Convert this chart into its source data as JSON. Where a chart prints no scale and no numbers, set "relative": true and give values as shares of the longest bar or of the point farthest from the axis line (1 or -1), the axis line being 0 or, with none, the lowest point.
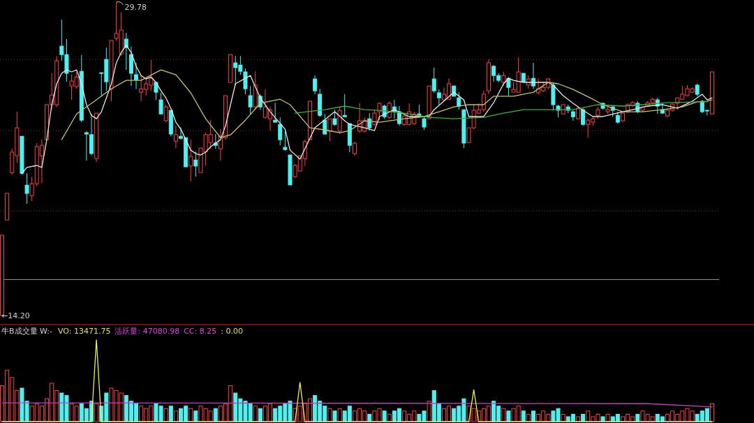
{
  "chart_data": [
    {
      "type": "candlestick",
      "categories": [
        null,
        null,
        null,
        null,
        null,
        null,
        null,
        null,
        null,
        null,
        null,
        null,
        null,
        null,
        null,
        null,
        null,
        null,
        null,
        null,
        null,
        null,
        null,
        null,
        null,
        null,
        null,
        null,
        null,
        null,
        null,
        null,
        null,
        null,
        null,
        null,
        null,
        null,
        null,
        null,
        null,
        null,
        null,
        null,
        null,
        null,
        null,
        null,
        null,
        null,
        null,
        null,
        null,
        null,
        null,
        null,
        null,
        null,
        null,
        null,
        null,
        null,
        null,
        null,
        null,
        null,
        null,
        null,
        null,
        null,
        null,
        null,
        null,
        null,
        null,
        null,
        null,
        null,
        null,
        null,
        null,
        null,
        null,
        null,
        null,
        null,
        null,
        null,
        null,
        null,
        null,
        null,
        null,
        null,
        null,
        null,
        null,
        null,
        null,
        null,
        null,
        null,
        null,
        null,
        null,
        null,
        null,
        null,
        null,
        null,
        null,
        null,
        null,
        null,
        null,
        null,
        null,
        null,
        null,
        null,
        null,
        null,
        null,
        null,
        null,
        null,
        null,
        null,
        null,
        null,
        null,
        null,
        null,
        null,
        null,
        null,
        null,
        null,
        null,
        null,
        null,
        null,
        null,
        null
      ],
      "ohlc": [
        [
          14.2,
          18.19,
          14.2,
          18.19
        ],
        [
          18.95,
          20.27,
          18.95,
          20.27
        ],
        [
          21.31,
          22.49,
          21.2,
          22.32
        ],
        [
          22.14,
          24.33,
          21.79,
          23.53
        ],
        [
          23.11,
          23.11,
          21.2,
          21.27
        ],
        [
          20.68,
          21.27,
          19.75,
          20.27
        ],
        [
          20.16,
          21.1,
          19.89,
          20.75
        ],
        [
          20.75,
          22.77,
          20.62,
          22.59
        ],
        [
          22.14,
          22.97,
          20.79,
          22.66
        ],
        [
          22.94,
          24.68,
          22.94,
          24.68
        ],
        [
          24.68,
          26.24,
          24.43,
          25.16
        ],
        [
          24.68,
          27.1,
          24.57,
          26.86
        ],
        [
          27.59,
          28.91,
          26.86,
          27.17
        ],
        [
          27.17,
          27.94,
          25.82,
          26.24
        ],
        [
          25.61,
          26.17,
          24.92,
          25.86
        ],
        [
          25.58,
          26.31,
          25.47,
          26.06
        ],
        [
          26.34,
          27.14,
          23.81,
          23.91
        ],
        [
          23.29,
          23.36,
          21.9,
          23.22
        ],
        [
          23.19,
          24.22,
          22.18,
          22.25
        ],
        [
          22.0,
          24.26,
          21.83,
          24.26
        ],
        [
          26.27,
          26.27,
          25.13,
          26.24
        ],
        [
          26.93,
          27.52,
          25.37,
          25.82
        ],
        [
          25.47,
          27.87,
          24.85,
          27.87
        ],
        [
          27.98,
          29.78,
          27.87,
          28.22
        ],
        [
          27.21,
          29.26,
          27.1,
          28.39
        ],
        [
          27.94,
          28.25,
          26.41,
          27.52
        ],
        [
          27.17,
          27.56,
          25.61,
          26.24
        ],
        [
          26.17,
          26.76,
          25.44,
          25.92
        ],
        [
          25.3,
          26.13,
          24.85,
          25.47
        ],
        [
          25.44,
          25.96,
          25.13,
          25.72
        ],
        [
          25.65,
          26.9,
          25.37,
          25.99
        ],
        [
          25.79,
          25.82,
          24.92,
          25.3
        ],
        [
          24.92,
          25.27,
          24.22,
          24.22
        ],
        [
          23.88,
          24.68,
          23.81,
          24.57
        ],
        [
          24.4,
          24.4,
          23.11,
          23.22
        ],
        [
          22.87,
          23.63,
          22.52,
          23.19
        ],
        [
          23.11,
          23.56,
          22.94,
          23.01
        ],
        [
          23.04,
          23.04,
          21.59,
          21.59
        ],
        [
          21.63,
          22.94,
          20.86,
          22.11
        ],
        [
          21.93,
          22.35,
          21.1,
          21.63
        ],
        [
          21.31,
          22.52,
          21.31,
          22.52
        ],
        [
          22.35,
          23.29,
          21.66,
          23.19
        ],
        [
          22.8,
          23.91,
          22.49,
          23.19
        ],
        [
          22.77,
          23.22,
          22.49,
          22.66
        ],
        [
          22.49,
          23.46,
          21.9,
          23.11
        ],
        [
          23.04,
          25.13,
          22.94,
          25.13
        ],
        [
          25.79,
          27.17,
          25.79,
          27.17
        ],
        [
          26.76,
          27.1,
          25.65,
          26.52
        ],
        [
          26.65,
          27.1,
          26.17,
          26.34
        ],
        [
          26.31,
          26.48,
          25.2,
          25.47
        ],
        [
          25.13,
          25.61,
          24.22,
          24.57
        ],
        [
          24.57,
          26.34,
          24.43,
          25.65
        ],
        [
          25.1,
          25.2,
          24.43,
          24.57
        ],
        [
          24.05,
          25.44,
          23.98,
          24.57
        ],
        [
          23.98,
          24.57,
          23.39,
          24.43
        ],
        [
          23.91,
          24.78,
          23.81,
          23.81
        ],
        [
          23.7,
          24.05,
          22.66,
          22.94
        ],
        [
          22.56,
          23.36,
          22.39,
          22.45
        ],
        [
          22.18,
          22.18,
          20.69,
          20.69
        ],
        [
          21.1,
          21.73,
          21.03,
          21.66
        ],
        [
          21.38,
          22.14,
          21.38,
          22.14
        ],
        [
          22.0,
          22.94,
          21.63,
          22.84
        ],
        [
          22.94,
          24.85,
          22.94,
          24.85
        ],
        [
          25.96,
          26.13,
          25.2,
          25.37
        ],
        [
          25.2,
          25.47,
          24.08,
          24.15
        ],
        [
          23.91,
          24.22,
          23.19,
          23.22
        ],
        [
          23.36,
          23.98,
          22.87,
          23.98
        ],
        [
          23.98,
          24.43,
          23.63,
          23.7
        ],
        [
          23.36,
          24.57,
          23.22,
          24.4
        ],
        [
          24.15,
          25.2,
          24.08,
          24.08
        ],
        [
          23.74,
          23.74,
          22.32,
          22.66
        ],
        [
          22.25,
          22.84,
          22.14,
          22.77
        ],
        [
          23.36,
          24.75,
          23.29,
          23.88
        ],
        [
          23.36,
          24.05,
          23.29,
          23.91
        ],
        [
          23.98,
          24.26,
          23.39,
          23.53
        ],
        [
          23.7,
          24.43,
          23.63,
          24.26
        ],
        [
          24.33,
          24.78,
          23.91,
          24.75
        ],
        [
          24.61,
          24.68,
          23.98,
          24.08
        ],
        [
          24.05,
          24.85,
          23.98,
          24.75
        ],
        [
          24.57,
          24.92,
          23.98,
          24.33
        ],
        [
          24.33,
          24.61,
          23.63,
          23.74
        ],
        [
          23.7,
          24.19,
          23.63,
          24.12
        ],
        [
          23.7,
          24.75,
          23.63,
          24.33
        ],
        [
          23.74,
          24.33,
          23.67,
          24.22
        ],
        [
          24.22,
          24.68,
          24.05,
          24.08
        ],
        [
          23.98,
          24.08,
          23.43,
          23.57
        ],
        [
          23.98,
          25.61,
          23.98,
          25.61
        ],
        [
          25.96,
          26.52,
          25.27,
          25.37
        ],
        [
          25.27,
          25.44,
          24.68,
          25.02
        ],
        [
          24.92,
          25.54,
          24.85,
          25.2
        ],
        [
          24.95,
          25.99,
          24.92,
          25.72
        ],
        [
          25.61,
          25.61,
          25.1,
          25.1
        ],
        [
          25.02,
          25.3,
          24.43,
          24.61
        ],
        [
          24.43,
          24.43,
          22.52,
          22.77
        ],
        [
          22.8,
          23.53,
          22.8,
          23.53
        ],
        [
          23.53,
          24.68,
          23.46,
          24.4
        ],
        [
          24.26,
          24.75,
          24.22,
          24.43
        ],
        [
          24.43,
          25.37,
          24.33,
          25.2
        ],
        [
          25.37,
          26.93,
          25.2,
          26.76
        ],
        [
          26.59,
          26.65,
          25.82,
          26.13
        ],
        [
          26.13,
          26.24,
          25.79,
          25.89
        ],
        [
          25.79,
          26.31,
          25.61,
          26.13
        ],
        [
          25.99,
          26.06,
          25.13,
          25.54
        ],
        [
          25.3,
          25.82,
          25.3,
          25.44
        ],
        [
          25.3,
          27.04,
          25.3,
          26.31
        ],
        [
          26.24,
          26.24,
          25.82,
          25.82
        ],
        [
          25.65,
          26.13,
          25.47,
          25.96
        ],
        [
          25.99,
          26.76,
          25.47,
          25.61
        ],
        [
          25.27,
          25.99,
          25.2,
          25.47
        ],
        [
          25.37,
          25.82,
          25.3,
          25.54
        ],
        [
          25.54,
          25.99,
          25.44,
          25.96
        ],
        [
          25.65,
          25.79,
          24.4,
          24.68
        ],
        [
          24.61,
          24.68,
          24.05,
          24.4
        ],
        [
          24.22,
          24.68,
          24.22,
          24.68
        ],
        [
          24.57,
          24.68,
          24.26,
          24.4
        ],
        [
          24.33,
          24.4,
          23.88,
          24.08
        ],
        [
          23.98,
          24.61,
          23.98,
          24.5
        ],
        [
          24.43,
          24.5,
          23.63,
          23.7
        ],
        [
          23.7,
          23.98,
          23.04,
          23.91
        ],
        [
          23.81,
          24.08,
          23.63,
          23.98
        ],
        [
          24.15,
          24.57,
          23.98,
          24.43
        ],
        [
          24.75,
          24.78,
          24.43,
          24.5
        ],
        [
          24.33,
          24.57,
          24.22,
          24.43
        ],
        [
          24.57,
          24.61,
          24.08,
          24.4
        ],
        [
          24.15,
          24.33,
          23.74,
          23.81
        ],
        [
          23.88,
          24.33,
          23.81,
          24.26
        ],
        [
          24.33,
          24.75,
          24.26,
          24.68
        ],
        [
          24.64,
          24.85,
          24.57,
          24.78
        ],
        [
          24.75,
          24.85,
          24.26,
          24.33
        ],
        [
          24.4,
          24.61,
          24.33,
          24.57
        ],
        [
          24.61,
          24.85,
          24.57,
          24.78
        ],
        [
          24.78,
          25.02,
          24.75,
          24.95
        ],
        [
          24.92,
          25.02,
          24.22,
          24.61
        ],
        [
          24.43,
          24.75,
          24.22,
          24.26
        ],
        [
          24.12,
          24.47,
          24.05,
          24.4
        ],
        [
          24.4,
          24.75,
          24.33,
          24.71
        ],
        [
          24.75,
          25.02,
          24.43,
          25.02
        ],
        [
          24.95,
          25.61,
          24.92,
          25.2
        ],
        [
          25.13,
          25.65,
          25.1,
          25.47
        ],
        [
          25.3,
          25.54,
          25.27,
          25.47
        ],
        [
          25.65,
          25.72,
          25.1,
          25.2
        ],
        [
          24.85,
          24.92,
          24.26,
          24.33
        ],
        [
          24.4,
          24.43,
          24.15,
          24.37
        ],
        [
          24.22,
          26.31,
          24.22,
          26.31
        ]
      ],
      "colors": [
        "#ff4040",
        "#ff4040",
        "#ff4040",
        "#ff4040",
        "#50f0f0",
        "#50f0f0",
        "#ff4040",
        "#ff4040",
        "#ff4040",
        "#ff4040",
        "#ff4040",
        "#ff4040",
        "#50f0f0",
        "#50f0f0",
        "#ff4040",
        "#ff4040",
        "#50f0f0",
        "#50f0f0",
        "#50f0f0",
        "#ff4040",
        "#50f0f0",
        "#50f0f0",
        "#ff4040",
        "#ff4040",
        "#ff4040",
        "#50f0f0",
        "#50f0f0",
        "#50f0f0",
        "#ff4040",
        "#ff4040",
        "#ff4040",
        "#50f0f0",
        "#50f0f0",
        "#ff4040",
        "#50f0f0",
        "#ff4040",
        "#50f0f0",
        "#50f0f0",
        "#ff4040",
        "#50f0f0",
        "#ff4040",
        "#ff4040",
        "#ff4040",
        "#50f0f0",
        "#ff4040",
        "#ff4040",
        "#ff4040",
        "#50f0f0",
        "#50f0f0",
        "#50f0f0",
        "#50f0f0",
        "#ff4040",
        "#50f0f0",
        "#ff4040",
        "#ff4040",
        "#50f0f0",
        "#50f0f0",
        "#50f0f0",
        "#50f0f0",
        "#ff4040",
        "#ff4040",
        "#ff4040",
        "#ff4040",
        "#50f0f0",
        "#50f0f0",
        "#50f0f0",
        "#ff4040",
        "#50f0f0",
        "#ff4040",
        "#50f0f0",
        "#50f0f0",
        "#ff4040",
        "#ff4040",
        "#ff4040",
        "#50f0f0",
        "#ff4040",
        "#ff4040",
        "#50f0f0",
        "#ff4040",
        "#50f0f0",
        "#50f0f0",
        "#ff4040",
        "#ff4040",
        "#ff4040",
        "#50f0f0",
        "#50f0f0",
        "#ff4040",
        "#50f0f0",
        "#50f0f0",
        "#ff4040",
        "#ff4040",
        "#50f0f0",
        "#50f0f0",
        "#50f0f0",
        "#ff4040",
        "#ff4040",
        "#ff4040",
        "#ff4040",
        "#ff4040",
        "#50f0f0",
        "#50f0f0",
        "#ff4040",
        "#50f0f0",
        "#ff4040",
        "#ff4040",
        "#50f0f0",
        "#ff4040",
        "#50f0f0",
        "#ff4040",
        "#ff4040",
        "#ff4040",
        "#50f0f0",
        "#50f0f0",
        "#ff4040",
        "#50f0f0",
        "#50f0f0",
        "#ff4040",
        "#50f0f0",
        "#ff4040",
        "#ff4040",
        "#ff4040",
        "#50f0f0",
        "#ff4040",
        "#50f0f0",
        "#50f0f0",
        "#ff4040",
        "#ff4040",
        "#ff4040",
        "#50f0f0",
        "#ff4040",
        "#ff4040",
        "#ff4040",
        "#50f0f0",
        "#50f0f0",
        "#ff4040",
        "#ff4040",
        "#ff4040",
        "#ff4040",
        "#ff4040",
        "#ff4040",
        "#50f0f0",
        "#50f0f0",
        "#50f0f0",
        "#ff4040"
      ],
      "series": [
        {
          "type": "line",
          "color": "#e8e8e8",
          "values": [
            null,
            null,
            null,
            null,
            21.27,
            21.56,
            null,
            21.66,
            21.56,
            22.94,
            24.68,
            25.72,
            26.24,
            26.41,
            26.31,
            26.41,
            25.72,
            24.68,
            24.15,
            23.98,
            24.33,
            25.02,
            25.72,
            26.76,
            27.28,
            27.63,
            27.28,
            26.59,
            26.13,
            25.96,
            26.06,
            25.79,
            25.37,
            25.02,
            24.5,
            23.81,
            23.46,
            22.94,
            22.42,
            22.25,
            22.18,
            22.32,
            22.59,
            22.77,
            22.94,
            23.63,
            24.68,
            25.72,
            null,
            null,
            26.13,
            null,
            25.02,
            null,
            24.33,
            null,
            null,
            23.46,
            22.42,
            null,
            21.97,
            null,
            null,
            23.53,
            null,
            null,
            null,
            24.33,
            null,
            23.88,
            23.7,
            null,
            null,
            23.53,
            null,
            23.39,
            24.09,
            null,
            null,
            24.43,
            null,
            null,
            24.09,
            null,
            null,
            null,
            24.09,
            24.43,
            null,
            null,
            null,
            25.3,
            null,
            24.92,
            24.09,
            null,
            null,
            24.09,
            null,
            24.78,
            null,
            25.72,
            25.99,
            25.89,
            null,
            25.79,
            null,
            null,
            null,
            null,
            25.79,
            25.65,
            null,
            25.13,
            null,
            24.75,
            null,
            24.4,
            null,
            24.09,
            null,
            24.09,
            null,
            null,
            null,
            24.33,
            null,
            24.43,
            null,
            null,
            24.61,
            null,
            null,
            24.68,
            null,
            null,
            24.5,
            null,
            null,
            24.85,
            null,
            25.2,
            24.92,
            25.02
          ]
        },
        {
          "type": "line",
          "color": "#c8c46a",
          "values": [
            null,
            null,
            null,
            null,
            null,
            null,
            null,
            null,
            null,
            null,
            null,
            null,
            22.94,
            null,
            null,
            24.22,
            null,
            null,
            null,
            24.92,
            null,
            null,
            25.47,
            null,
            null,
            25.89,
            null,
            null,
            25.89,
            null,
            null,
            null,
            26.41,
            null,
            null,
            26.17,
            null,
            null,
            25.27,
            null,
            null,
            23.98,
            null,
            null,
            23.04,
            null,
            23.18,
            null,
            null,
            23.91,
            null,
            null,
            24.75,
            null,
            null,
            null,
            24.95,
            null,
            24.68,
            null,
            null,
            null,
            23.53,
            null,
            null,
            23.43,
            null,
            null,
            23.29,
            null,
            23.39,
            null,
            null,
            23.88,
            null,
            null,
            23.81,
            null,
            null,
            null,
            null,
            23.98,
            null,
            null,
            null,
            24.09,
            null,
            null,
            24.33,
            null,
            null,
            24.57,
            null,
            null,
            24.68,
            null,
            null,
            24.68,
            null,
            25.1,
            null,
            null,
            null,
            25.1,
            null,
            null,
            null,
            25.3,
            null,
            null,
            25.79,
            null,
            25.72,
            null,
            null,
            25.44,
            null,
            null,
            null,
            24.95,
            null,
            24.68,
            null,
            null,
            null,
            24.33,
            null,
            null,
            null,
            24.33,
            null,
            null,
            null,
            24.43,
            null,
            null,
            null,
            24.57,
            null,
            null,
            24.82,
            null,
            24.85,
            24.92
          ]
        },
        {
          "type": "line",
          "color": "#3cb43c",
          "values": [
            null,
            null,
            null,
            null,
            null,
            null,
            null,
            null,
            null,
            null,
            null,
            null,
            null,
            null,
            null,
            null,
            null,
            null,
            null,
            null,
            null,
            null,
            null,
            null,
            null,
            null,
            null,
            null,
            null,
            null,
            null,
            null,
            null,
            null,
            null,
            null,
            null,
            null,
            null,
            null,
            null,
            null,
            null,
            null,
            null,
            null,
            null,
            null,
            null,
            null,
            null,
            null,
            null,
            null,
            null,
            null,
            null,
            null,
            null,
            24.26,
            null,
            null,
            null,
            null,
            null,
            24.43,
            null,
            null,
            null,
            24.61,
            null,
            null,
            null,
            24.43,
            null,
            null,
            24.4,
            null,
            null,
            null,
            null,
            24.26,
            null,
            null,
            null,
            null,
            24.05,
            null,
            null,
            null,
            null,
            23.98,
            null,
            null,
            null,
            null,
            null,
            24.05,
            null,
            null,
            null,
            24.26,
            null,
            null,
            null,
            24.43,
            null,
            null,
            null,
            null,
            24.43,
            null,
            null,
            null,
            null,
            24.43,
            null,
            null,
            null,
            null,
            24.68,
            null,
            null,
            null,
            null,
            24.61,
            null,
            null,
            null,
            24.68,
            null,
            null,
            null,
            null,
            24.78,
            null,
            null,
            null,
            null,
            null,
            24.82,
            null,
            24.82,
            null
          ]
        }
      ],
      "yticks": [
        {
          "value": 26.93,
          "label": null
        },
        {
          "value": 23.39,
          "label": null
        },
        {
          "value": 19.4,
          "label": null
        }
      ],
      "grid": "y",
      "ref_lines": [
        {
          "axis": "y",
          "value": 15.99,
          "color": "#9a9a9a"
        }
      ],
      "annotations": [
        "29.78",
        "←14.20"
      ]
    },
    {
      "type": "bar",
      "relative": true,
      "title": "牛B成交量 W:-",
      "categories": [
        null,
        null,
        null,
        null,
        null,
        null,
        null,
        null,
        null,
        null,
        null,
        null,
        null,
        null,
        null,
        null,
        null,
        null,
        null,
        null,
        null,
        null,
        null,
        null,
        null,
        null,
        null,
        null,
        null,
        null,
        null,
        null,
        null,
        null,
        null,
        null,
        null,
        null,
        null,
        null,
        null,
        null,
        null,
        null,
        null,
        null,
        null,
        null,
        null,
        null,
        null,
        null,
        null,
        null,
        null,
        null,
        null,
        null,
        null,
        null,
        null,
        null,
        null,
        null,
        null,
        null,
        null,
        null,
        null,
        null,
        null,
        null,
        null,
        null,
        null,
        null,
        null,
        null,
        null,
        null,
        null,
        null,
        null,
        null,
        null,
        null,
        null,
        null,
        null,
        null,
        null,
        null,
        null,
        null,
        null,
        null,
        null,
        null,
        null,
        null,
        null,
        null,
        null,
        null,
        null,
        null,
        null,
        null,
        null,
        null,
        null,
        null,
        null,
        null,
        null,
        null,
        null,
        null,
        null,
        null,
        null,
        null,
        null,
        null,
        null,
        null,
        null,
        null,
        null,
        null,
        null,
        null,
        null,
        null,
        null,
        null,
        null,
        null,
        null,
        null,
        null,
        null,
        null,
        null
      ],
      "values": [
        0.44,
        0.63,
        0.54,
        0.38,
        0.41,
        0.25,
        0.19,
        0.22,
        0.19,
        0.28,
        0.47,
        0.38,
        0.35,
        0.32,
        0.22,
        0.19,
        0.22,
        0.16,
        0.25,
        0.22,
        0.19,
        0.35,
        0.41,
        0.38,
        0.35,
        0.32,
        0.25,
        0.22,
        0.19,
        0.16,
        0.19,
        0.22,
        0.19,
        0.16,
        0.19,
        0.13,
        0.16,
        0.19,
        0.16,
        0.13,
        0.19,
        0.16,
        0.13,
        0.16,
        0.19,
        0.22,
        0.44,
        0.35,
        0.28,
        0.25,
        0.22,
        0.19,
        0.16,
        0.19,
        0.22,
        0.16,
        0.19,
        0.22,
        0.25,
        0.16,
        0.19,
        0.22,
        0.28,
        0.32,
        0.25,
        0.19,
        0.16,
        0.13,
        0.16,
        0.13,
        0.19,
        0.13,
        0.16,
        0.13,
        0.09,
        0.13,
        0.16,
        0.13,
        0.09,
        0.13,
        0.16,
        0.13,
        0.09,
        0.13,
        0.09,
        0.13,
        0.25,
        0.38,
        0.22,
        0.16,
        0.19,
        0.16,
        0.19,
        0.28,
        0.19,
        0.16,
        0.13,
        0.16,
        0.19,
        0.25,
        0.19,
        0.16,
        0.13,
        0.16,
        0.19,
        0.13,
        0.09,
        0.13,
        0.09,
        0.13,
        0.09,
        0.13,
        0.16,
        0.09,
        0.06,
        0.09,
        0.06,
        0.09,
        0.13,
        0.06,
        0.09,
        0.06,
        0.09,
        0.06,
        0.09,
        0.06,
        0.09,
        0.06,
        0.09,
        0.13,
        0.09,
        0.06,
        0.09,
        0.06,
        0.09,
        0.13,
        0.09,
        0.13,
        0.16,
        0.13,
        0.09,
        0.13,
        0.16,
        0.22
      ],
      "colors": [
        "#ff4040",
        "#ff4040",
        "#ff4040",
        "#ff4040",
        "#50f0f0",
        "#50f0f0",
        "#ff4040",
        "#ff4040",
        "#ff4040",
        "#ff4040",
        "#ff4040",
        "#ff4040",
        "#50f0f0",
        "#50f0f0",
        "#ff4040",
        "#ff4040",
        "#50f0f0",
        "#50f0f0",
        "#50f0f0",
        "#ff4040",
        "#50f0f0",
        "#50f0f0",
        "#ff4040",
        "#ff4040",
        "#ff4040",
        "#50f0f0",
        "#50f0f0",
        "#50f0f0",
        "#ff4040",
        "#ff4040",
        "#ff4040",
        "#50f0f0",
        "#50f0f0",
        "#ff4040",
        "#50f0f0",
        "#ff4040",
        "#50f0f0",
        "#50f0f0",
        "#ff4040",
        "#50f0f0",
        "#ff4040",
        "#ff4040",
        "#ff4040",
        "#50f0f0",
        "#ff4040",
        "#ff4040",
        "#ff4040",
        "#50f0f0",
        "#50f0f0",
        "#50f0f0",
        "#50f0f0",
        "#ff4040",
        "#50f0f0",
        "#ff4040",
        "#ff4040",
        "#50f0f0",
        "#50f0f0",
        "#50f0f0",
        "#50f0f0",
        "#ff4040",
        "#ff4040",
        "#ff4040",
        "#ff4040",
        "#50f0f0",
        "#50f0f0",
        "#50f0f0",
        "#ff4040",
        "#50f0f0",
        "#ff4040",
        "#50f0f0",
        "#50f0f0",
        "#ff4040",
        "#ff4040",
        "#ff4040",
        "#50f0f0",
        "#ff4040",
        "#ff4040",
        "#50f0f0",
        "#ff4040",
        "#50f0f0",
        "#50f0f0",
        "#ff4040",
        "#ff4040",
        "#ff4040",
        "#50f0f0",
        "#50f0f0",
        "#ff4040",
        "#50f0f0",
        "#50f0f0",
        "#ff4040",
        "#ff4040",
        "#50f0f0",
        "#50f0f0",
        "#50f0f0",
        "#ff4040",
        "#ff4040",
        "#ff4040",
        "#ff4040",
        "#ff4040",
        "#50f0f0",
        "#50f0f0",
        "#ff4040",
        "#50f0f0",
        "#ff4040",
        "#ff4040",
        "#50f0f0",
        "#ff4040",
        "#50f0f0",
        "#ff4040",
        "#ff4040",
        "#ff4040",
        "#50f0f0",
        "#50f0f0",
        "#ff4040",
        "#50f0f0",
        "#50f0f0",
        "#ff4040",
        "#50f0f0",
        "#ff4040",
        "#ff4040",
        "#ff4040",
        "#50f0f0",
        "#ff4040",
        "#50f0f0",
        "#50f0f0",
        "#ff4040",
        "#ff4040",
        "#ff4040",
        "#50f0f0",
        "#ff4040",
        "#ff4040",
        "#ff4040",
        "#50f0f0",
        "#50f0f0",
        "#ff4040",
        "#ff4040",
        "#ff4040",
        "#ff4040",
        "#ff4040",
        "#ff4040",
        "#50f0f0",
        "#50f0f0",
        "#50f0f0",
        "#ff4040"
      ],
      "series": [
        {
          "type": "line",
          "color": "#c040c0",
          "values": [
            0.23,
            null,
            null,
            null,
            null,
            null,
            null,
            null,
            null,
            null,
            null,
            null,
            null,
            null,
            null,
            null,
            null,
            null,
            null,
            null,
            null,
            null,
            null,
            null,
            null,
            null,
            null,
            null,
            null,
            null,
            null,
            null,
            null,
            null,
            null,
            null,
            null,
            null,
            null,
            null,
            null,
            null,
            null,
            null,
            null,
            null,
            null,
            null,
            null,
            null,
            null,
            null,
            null,
            null,
            null,
            null,
            null,
            null,
            null,
            null,
            null,
            null,
            null,
            null,
            null,
            null,
            null,
            null,
            null,
            null,
            null,
            null,
            null,
            null,
            null,
            null,
            null,
            null,
            null,
            null,
            null,
            null,
            null,
            null,
            null,
            null,
            null,
            null,
            null,
            null,
            null,
            null,
            null,
            null,
            null,
            null,
            null,
            null,
            null,
            null,
            null,
            null,
            null,
            null,
            null,
            null,
            null,
            null,
            null,
            null,
            null,
            null,
            null,
            null,
            null,
            null,
            null,
            null,
            null,
            null,
            null,
            null,
            null,
            null,
            null,
            null,
            null,
            null,
            null,
            null,
            0.22,
            null,
            null,
            null,
            null,
            null,
            null,
            null,
            null,
            null,
            null,
            null,
            null,
            0.18
          ]
        },
        {
          "type": "line",
          "color": "#f0f050",
          "values": [
            0,
            0,
            0,
            0,
            0,
            0,
            0,
            0,
            0,
            0,
            0,
            0,
            0,
            0,
            0,
            0,
            0,
            0,
            0,
            1,
            0,
            0,
            0,
            0,
            0,
            0,
            0,
            0,
            0,
            0,
            0,
            0,
            0,
            0,
            0,
            0,
            0,
            0,
            0,
            0,
            0,
            0,
            0,
            0,
            0,
            0,
            0,
            0,
            0,
            0,
            0,
            0,
            0,
            0,
            0,
            0,
            0,
            0,
            0,
            0,
            0.48,
            0,
            0,
            0,
            0,
            0,
            0,
            0,
            0,
            0,
            0,
            0,
            0,
            0,
            0,
            0,
            0,
            0,
            0,
            0,
            0,
            0,
            0,
            0,
            0,
            0,
            0,
            0,
            0,
            0,
            0,
            0,
            0,
            0,
            0,
            0.39,
            0,
            0,
            0,
            0,
            0,
            0,
            0,
            0,
            0,
            0,
            0,
            0,
            0,
            0,
            0,
            0,
            0,
            0,
            0,
            0,
            0,
            0,
            0,
            0,
            0,
            0,
            0,
            0,
            0,
            0,
            0,
            0,
            0,
            0,
            0,
            0,
            0,
            0,
            0,
            0,
            0,
            0,
            0,
            0,
            0,
            0,
            0,
            0
          ]
        }
      ],
      "annotations": [
        "VO: 13471.75",
        "活跃量: 47080.98",
        "CC: 8.25",
        ": 0.00"
      ]
    }
  ]
}
